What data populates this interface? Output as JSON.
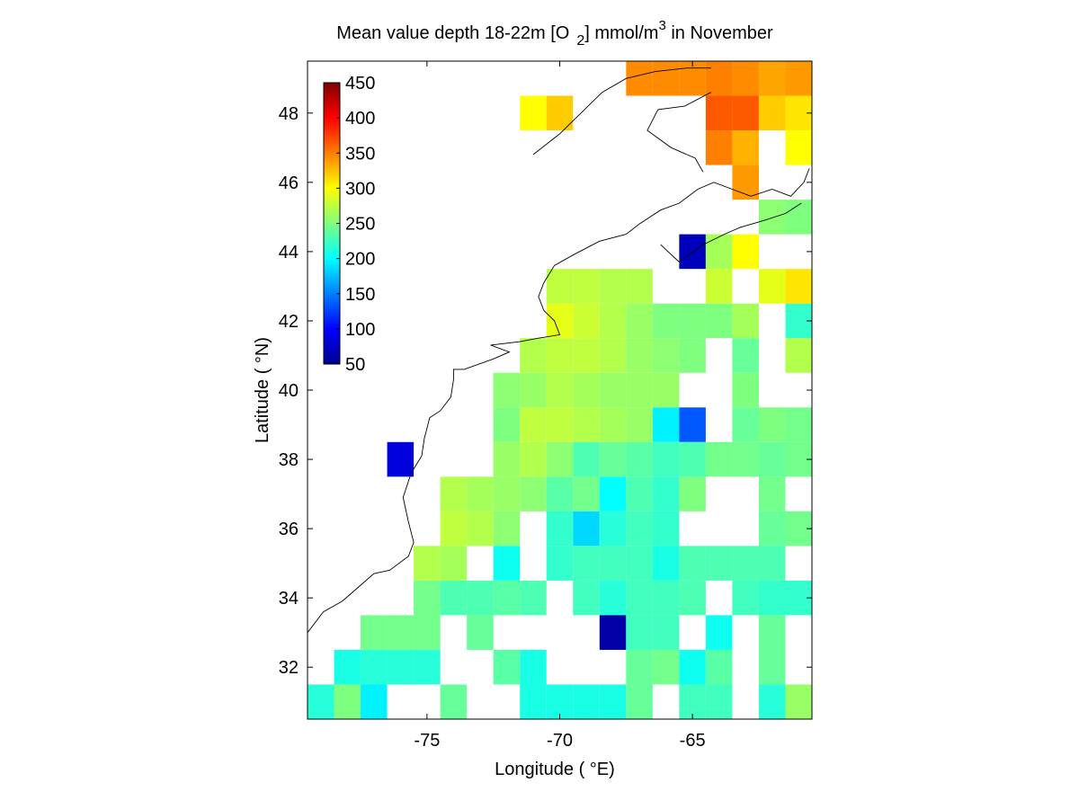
{
  "chart_data": {
    "type": "heatmap",
    "title_main": "Mean value depth 18-22m [O",
    "title_sub": "2",
    "title_mid": "] mmol/m",
    "title_sup": "3",
    "title_end": " in November",
    "xlabel": "Longitude ( °E)",
    "ylabel": "Latitude ( °N)",
    "xlim": [
      -79.5,
      -60.5
    ],
    "ylim": [
      30.5,
      49.5
    ],
    "x_ticks": [
      -75,
      -70,
      -65
    ],
    "x_tick_labels": [
      "-75",
      "-70",
      "-65"
    ],
    "y_ticks": [
      32,
      34,
      36,
      38,
      40,
      42,
      44,
      46,
      48
    ],
    "y_tick_labels": [
      "32",
      "34",
      "36",
      "38",
      "40",
      "42",
      "44",
      "46",
      "48"
    ],
    "colorbar": {
      "min": 50,
      "max": 450,
      "colormap": "jet",
      "ticks": [
        50,
        100,
        150,
        200,
        250,
        300,
        350,
        400,
        450
      ],
      "tick_labels": [
        "50",
        "100",
        "150",
        "200",
        "250",
        "300",
        "350",
        "400",
        "450"
      ]
    },
    "cell_size_deg": 1,
    "grid_origin_lon": -79.5,
    "grid_origin_lat": 49.5,
    "rows": [
      [
        null,
        null,
        null,
        null,
        null,
        null,
        null,
        null,
        null,
        null,
        null,
        null,
        340,
        340,
        340,
        350,
        345,
        335,
        340
      ],
      [
        null,
        null,
        null,
        null,
        null,
        null,
        null,
        null,
        300,
        320,
        null,
        null,
        null,
        null,
        null,
        365,
        365,
        320,
        310
      ],
      [
        null,
        null,
        null,
        null,
        null,
        null,
        null,
        null,
        null,
        null,
        null,
        null,
        null,
        null,
        null,
        350,
        330,
        null,
        300
      ],
      [
        null,
        null,
        null,
        null,
        null,
        null,
        null,
        null,
        null,
        null,
        null,
        null,
        null,
        null,
        null,
        null,
        340,
        null,
        null
      ],
      [
        null,
        null,
        null,
        null,
        null,
        null,
        null,
        null,
        null,
        null,
        null,
        null,
        null,
        null,
        null,
        null,
        null,
        255,
        250
      ],
      [
        null,
        null,
        null,
        null,
        null,
        null,
        null,
        null,
        null,
        null,
        null,
        null,
        null,
        null,
        70,
        265,
        300,
        null,
        null
      ],
      [
        null,
        null,
        null,
        null,
        null,
        null,
        null,
        null,
        null,
        275,
        275,
        270,
        270,
        null,
        null,
        280,
        null,
        290,
        310
      ],
      [
        null,
        null,
        null,
        null,
        null,
        null,
        null,
        null,
        null,
        290,
        280,
        270,
        260,
        250,
        250,
        250,
        265,
        null,
        220
      ],
      [
        null,
        null,
        null,
        null,
        null,
        null,
        null,
        null,
        null,
        275,
        275,
        270,
        260,
        255,
        250,
        null,
        240,
        null,
        270
      ],
      [
        null,
        null,
        null,
        null,
        null,
        null,
        null,
        null,
        265,
        270,
        265,
        260,
        260,
        260,
        null,
        null,
        250,
        null,
        null
      ],
      [
        null,
        null,
        null,
        null,
        null,
        null,
        null,
        265,
        275,
        275,
        270,
        265,
        260,
        195,
        135,
        null,
        240,
        250,
        245
      ],
      [
        null,
        null,
        null,
        null,
        null,
        null,
        null,
        260,
        270,
        255,
        230,
        null,
        null,
        null,
        null,
        null,
        null,
        null,
        245
      ],
      [
        null,
        null,
        null,
        null,
        null,
        null,
        null,
        null,
        null,
        265,
        250,
        235,
        235,
        null,
        null,
        null,
        null,
        null,
        null
      ],
      [
        null,
        null,
        null,
        null,
        null,
        null,
        null,
        null,
        null,
        null,
        null,
        null,
        null,
        null,
        null,
        null,
        null,
        null,
        null
      ],
      [
        null,
        null,
        null,
        null,
        null,
        null,
        null,
        null,
        null,
        null,
        null,
        null,
        null,
        null,
        null,
        null,
        null,
        null,
        null
      ],
      [
        null,
        null,
        null,
        null,
        null,
        null,
        null,
        null,
        null,
        null,
        null,
        null,
        null,
        null,
        null,
        null,
        null,
        null,
        null
      ],
      [
        null,
        null,
        null,
        null,
        null,
        null,
        null,
        null,
        null,
        null,
        null,
        null,
        null,
        null,
        null,
        null,
        null,
        null,
        null
      ],
      [
        null,
        null,
        null,
        null,
        null,
        null,
        null,
        null,
        null,
        null,
        null,
        null,
        null,
        null,
        null,
        null,
        null,
        null,
        null
      ],
      [
        null,
        null,
        null,
        null,
        null,
        null,
        null,
        null,
        null,
        null,
        null,
        null,
        null,
        null,
        null,
        null,
        null,
        null,
        null
      ]
    ],
    "colormap_stops": [
      "#00008f",
      "#0000ff",
      "#007fff",
      "#00ffff",
      "#7fff7f",
      "#ffff00",
      "#ff7f00",
      "#ff0000",
      "#7f0000"
    ]
  }
}
